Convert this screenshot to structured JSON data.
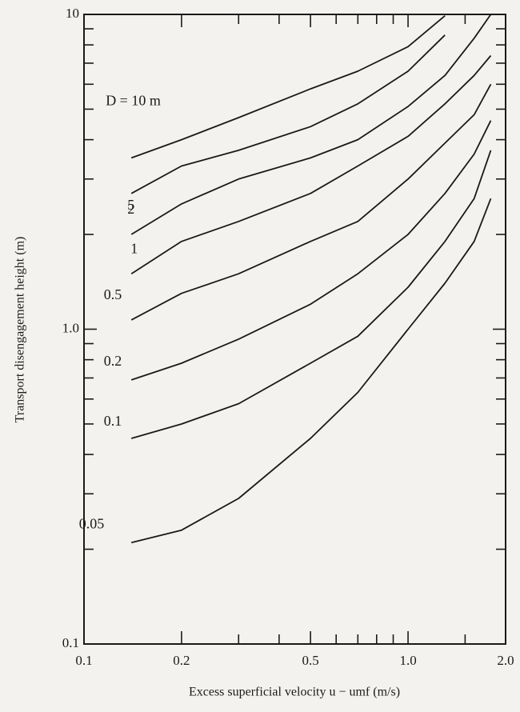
{
  "chart_data": {
    "type": "line",
    "xlabel": "Excess superficial velocity u − umf (m/s)",
    "ylabel": "Transport disengagement height (m)",
    "log_x": true,
    "log_y": true,
    "xlim": [
      0.1,
      2.0
    ],
    "ylim": [
      0.1,
      10
    ],
    "xticks": [
      0.1,
      0.2,
      0.5,
      {
        "value": 1,
        "label": "1.0"
      },
      {
        "value": 2,
        "label": "2.0"
      }
    ],
    "xminorticks": [
      0.3,
      0.4,
      0.6,
      0.7,
      0.8,
      0.9,
      1.5
    ],
    "yticks": [
      0.1,
      {
        "value": 1,
        "label": "1.0"
      },
      10
    ],
    "yminorticks": [
      0.2,
      0.3,
      0.4,
      0.5,
      0.6,
      0.7,
      0.8,
      0.9,
      2,
      3,
      4,
      5,
      6,
      7,
      8,
      9
    ],
    "x": [
      0.14,
      0.2,
      0.3,
      0.5,
      0.7,
      1.0,
      1.3,
      1.6,
      1.8
    ],
    "series": [
      {
        "name": "D = 10 m",
        "color": "#1a1a1a",
        "values": [
          3.5,
          4.0,
          4.7,
          5.8,
          6.6,
          7.9,
          9.9,
          null,
          null
        ]
      },
      {
        "name": "5",
        "color": "#1a1a1a",
        "values": [
          2.7,
          3.3,
          3.7,
          4.4,
          5.2,
          6.6,
          8.6,
          null,
          null
        ]
      },
      {
        "name": "2",
        "color": "#1a1a1a",
        "values": [
          2.0,
          2.5,
          3.0,
          3.5,
          4.0,
          5.1,
          6.4,
          8.4,
          10
        ]
      },
      {
        "name": "1",
        "color": "#1a1a1a",
        "values": [
          1.5,
          1.9,
          2.2,
          2.7,
          3.3,
          4.1,
          5.2,
          6.4,
          7.4
        ]
      },
      {
        "name": "0.5",
        "color": "#1a1a1a",
        "values": [
          1.07,
          1.3,
          1.5,
          1.9,
          2.2,
          3.0,
          3.9,
          4.8,
          6.0
        ]
      },
      {
        "name": "0.2",
        "color": "#1a1a1a",
        "values": [
          0.69,
          0.78,
          0.93,
          1.2,
          1.5,
          2.0,
          2.7,
          3.6,
          4.6
        ]
      },
      {
        "name": "0.1",
        "color": "#1a1a1a",
        "values": [
          0.45,
          0.5,
          0.58,
          0.78,
          0.95,
          1.36,
          1.9,
          2.6,
          3.7
        ]
      },
      {
        "name": "0.05",
        "color": "#1a1a1a",
        "values": [
          0.21,
          0.23,
          0.29,
          0.45,
          0.63,
          1.0,
          1.4,
          1.9,
          2.6
        ]
      }
    ]
  }
}
